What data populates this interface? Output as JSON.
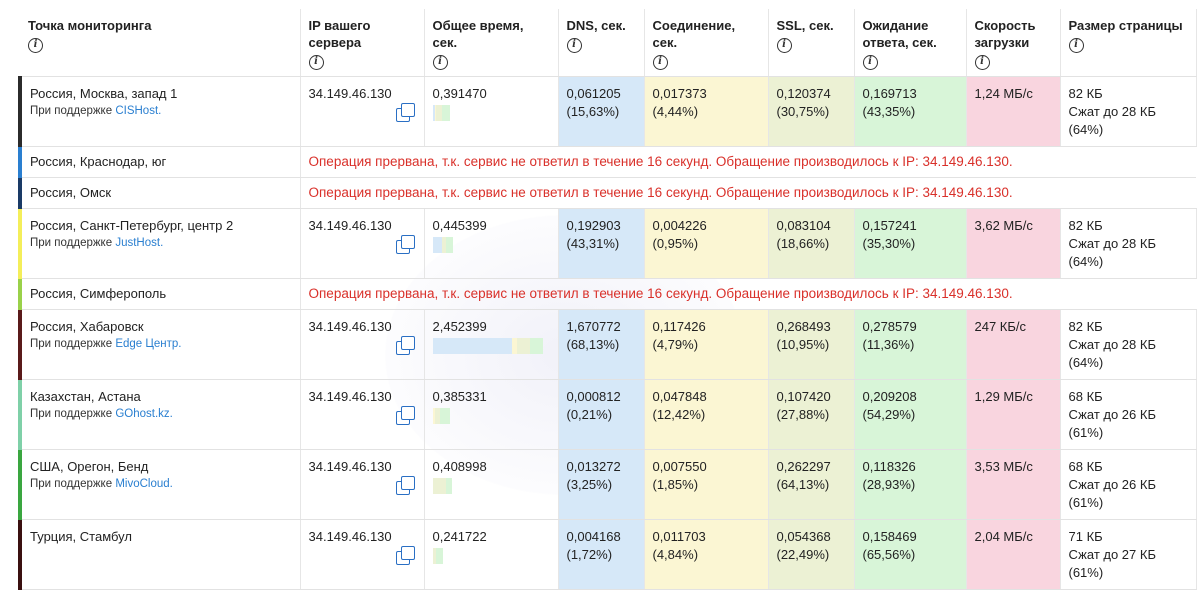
{
  "headers": [
    {
      "label": "Точка мониторинга"
    },
    {
      "label": "IP вашего сервера"
    },
    {
      "label": "Общее время, сек."
    },
    {
      "label": "DNS, сек."
    },
    {
      "label": "Соединение, сек."
    },
    {
      "label": "SSL, сек."
    },
    {
      "label": "Ожидание ответа, сек."
    },
    {
      "label": "Скорость загрузки"
    },
    {
      "label": "Размер страницы"
    }
  ],
  "rows": [
    {
      "type": "data",
      "stripe": "#2b2b2b",
      "location": "Россия, Москва, запад 1",
      "sponsor_prefix": "При поддержке",
      "sponsor": "CISHost.",
      "ip": "34.149.46.130",
      "total": "0,391470",
      "dns": "0,061205",
      "dns_pct": "(15,63%)",
      "conn": "0,017373",
      "conn_pct": "(4,44%)",
      "ssl": "0,120374",
      "ssl_pct": "(30,75%)",
      "wait": "0,169713",
      "wait_pct": "(43,35%)",
      "speed": "1,24 МБ/с",
      "size": "82 КБ",
      "compressed": "Сжат до 28 КБ",
      "compressed_pct": "(64%)",
      "bar_width": 0.16,
      "bar_fracs": [
        0.1563,
        0.0444,
        0.3075,
        0.4335
      ]
    },
    {
      "type": "error",
      "stripe": "#2a7fd0",
      "location": "Россия, Краснодар, юг",
      "error": "Операция прервана, т.к. сервис не ответил в течение 16 секунд. Обращение производилось к IP: 34.149.46.130."
    },
    {
      "type": "error",
      "stripe": "#1a3a66",
      "location": "Россия, Омск",
      "error": "Операция прервана, т.к. сервис не ответил в течение 16 секунд. Обращение производилось к IP: 34.149.46.130."
    },
    {
      "type": "data",
      "stripe": "#f4ee5a",
      "location": "Россия, Санкт-Петербург, центр 2",
      "sponsor_prefix": "При поддержке",
      "sponsor": "JustHost.",
      "ip": "34.149.46.130",
      "total": "0,445399",
      "dns": "0,192903",
      "dns_pct": "(43,31%)",
      "conn": "0,004226",
      "conn_pct": "(0,95%)",
      "ssl": "0,083104",
      "ssl_pct": "(18,66%)",
      "wait": "0,157241",
      "wait_pct": "(35,30%)",
      "speed": "3,62 МБ/с",
      "size": "82 КБ",
      "compressed": "Сжат до 28 КБ",
      "compressed_pct": "(64%)",
      "bar_width": 0.18,
      "bar_fracs": [
        0.4331,
        0.0095,
        0.1866,
        0.353
      ]
    },
    {
      "type": "error",
      "stripe": "#9ad14a",
      "location": "Россия, Симферополь",
      "error": "Операция прервана, т.к. сервис не ответил в течение 16 секунд. Обращение производилось к IP: 34.149.46.130."
    },
    {
      "type": "data",
      "stripe": "#5a1a1a",
      "location": "Россия, Хабаровск",
      "sponsor_prefix": "При поддержке",
      "sponsor": "Edge Центр.",
      "ip": "34.149.46.130",
      "total": "2,452399",
      "dns": "1,670772",
      "dns_pct": "(68,13%)",
      "conn": "0,117426",
      "conn_pct": "(4,79%)",
      "ssl": "0,268493",
      "ssl_pct": "(10,95%)",
      "wait": "0,278579",
      "wait_pct": "(11,36%)",
      "speed": "247 КБ/с",
      "size": "82 КБ",
      "compressed": "Сжат до 28 КБ",
      "compressed_pct": "(64%)",
      "bar_width": 1.0,
      "bar_fracs": [
        0.6813,
        0.0479,
        0.1095,
        0.1136
      ]
    },
    {
      "type": "data",
      "stripe": "#7fd0a8",
      "location": "Казахстан, Астана",
      "sponsor_prefix": "При поддержке",
      "sponsor": "GOhost.kz.",
      "ip": "34.149.46.130",
      "total": "0,385331",
      "dns": "0,000812",
      "dns_pct": "(0,21%)",
      "conn": "0,047848",
      "conn_pct": "(12,42%)",
      "ssl": "0,107420",
      "ssl_pct": "(27,88%)",
      "wait": "0,209208",
      "wait_pct": "(54,29%)",
      "speed": "1,29 МБ/с",
      "size": "68 КБ",
      "compressed": "Сжат до 26 КБ",
      "compressed_pct": "(61%)",
      "bar_width": 0.16,
      "bar_fracs": [
        0.0021,
        0.1242,
        0.2788,
        0.5429
      ]
    },
    {
      "type": "data",
      "stripe": "#3aa640",
      "location": "США, Орегон, Бенд",
      "sponsor_prefix": "При поддержке",
      "sponsor": "MivoCloud.",
      "ip": "34.149.46.130",
      "total": "0,408998",
      "dns": "0,013272",
      "dns_pct": "(3,25%)",
      "conn": "0,007550",
      "conn_pct": "(1,85%)",
      "ssl": "0,262297",
      "ssl_pct": "(64,13%)",
      "wait": "0,118326",
      "wait_pct": "(28,93%)",
      "speed": "3,53 МБ/с",
      "size": "68 КБ",
      "compressed": "Сжат до 26 КБ",
      "compressed_pct": "(61%)",
      "bar_width": 0.17,
      "bar_fracs": [
        0.0325,
        0.0185,
        0.6413,
        0.2893
      ]
    },
    {
      "type": "data",
      "stripe": "#3a1010",
      "location": "Турция, Стамбул",
      "sponsor_prefix": "",
      "sponsor": "",
      "ip": "34.149.46.130",
      "total": "0,241722",
      "dns": "0,004168",
      "dns_pct": "(1,72%)",
      "conn": "0,011703",
      "conn_pct": "(4,84%)",
      "ssl": "0,054368",
      "ssl_pct": "(22,49%)",
      "wait": "0,158469",
      "wait_pct": "(65,56%)",
      "speed": "2,04 МБ/с",
      "size": "71 КБ",
      "compressed": "Сжат до 27 КБ",
      "compressed_pct": "(61%)",
      "bar_width": 0.1,
      "bar_fracs": [
        0.0172,
        0.0484,
        0.2249,
        0.6556
      ]
    }
  ]
}
